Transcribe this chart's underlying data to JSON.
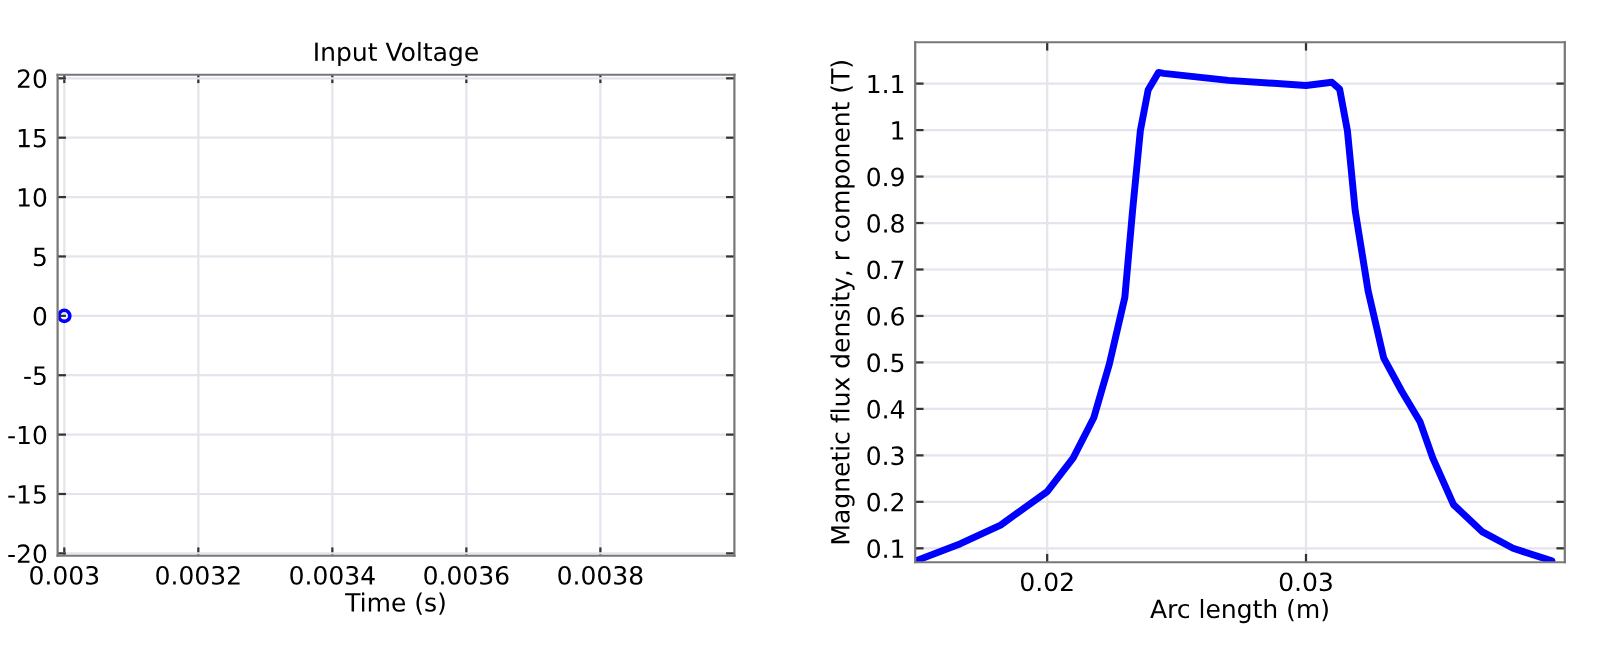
{
  "chart_data": [
    {
      "type": "scatter",
      "title": "Input Voltage",
      "xlabel": "Time (s)",
      "x": [
        0.003
      ],
      "series": [
        {
          "color": "#0000ff",
          "values": [
            0
          ]
        }
      ],
      "marker": "circle",
      "xlim": [
        0.00299,
        0.004
      ],
      "ylim": [
        -20.2,
        20.3
      ],
      "xticks": [
        0.003,
        0.0032,
        0.0034,
        0.0036,
        0.0038
      ],
      "yticks": [
        -20,
        -15,
        -10,
        -5,
        0,
        5,
        10,
        15,
        20
      ],
      "grid": true
    },
    {
      "type": "line",
      "xlabel": "Arc length (m)",
      "ylabel": "Magnetic flux density, r component (T)",
      "x": [
        0.01492,
        0.01665,
        0.0182,
        0.02,
        0.021,
        0.0218,
        0.0224,
        0.023,
        0.0233,
        0.0236,
        0.0239,
        0.0243,
        0.0245,
        0.027,
        0.03,
        0.031,
        0.0313,
        0.0316,
        0.0319,
        0.0324,
        0.033,
        0.0337,
        0.0344,
        0.0349,
        0.0357,
        0.0368,
        0.038,
        0.0395
      ],
      "series": [
        {
          "color": "#0000ff",
          "values": [
            0.073,
            0.11,
            0.15,
            0.222,
            0.294,
            0.381,
            0.496,
            0.64,
            0.827,
            0.999,
            1.086,
            1.124,
            1.122,
            1.107,
            1.096,
            1.103,
            1.088,
            0.999,
            0.827,
            0.654,
            0.51,
            0.438,
            0.373,
            0.294,
            0.194,
            0.136,
            0.1,
            0.073
          ]
        }
      ],
      "xlim": [
        0.0149,
        0.04
      ],
      "ylim": [
        0.07,
        1.189
      ],
      "xticks": [
        0.02,
        0.03
      ],
      "yticks": [
        0.1,
        0.2,
        0.3,
        0.4,
        0.5,
        0.6,
        0.7,
        0.8,
        0.9,
        1,
        1.1
      ],
      "grid": true
    }
  ]
}
